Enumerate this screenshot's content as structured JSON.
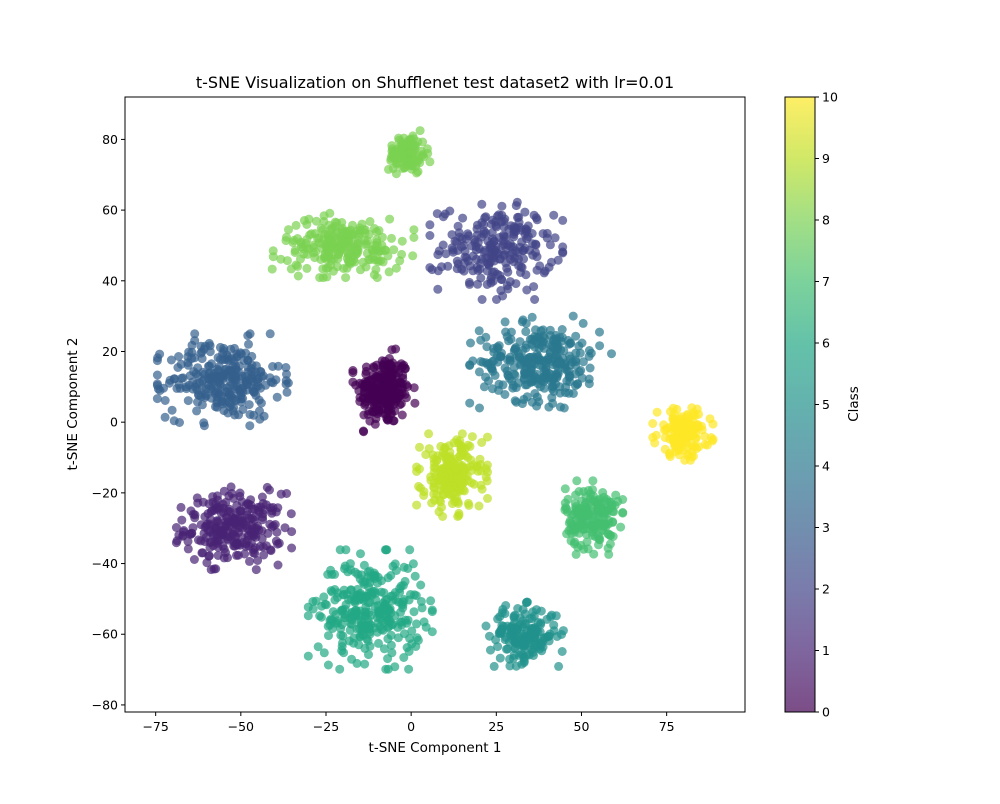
{
  "chart_data": {
    "type": "scatter",
    "title": "t-SNE Visualization on Shufflenet test dataset2 with lr=0.01",
    "xlabel": "t-SNE Component 1",
    "ylabel": "t-SNE Component 2",
    "xlim": [
      -84,
      98
    ],
    "ylim": [
      -82,
      92
    ],
    "xticks": [
      -75,
      -50,
      -25,
      0,
      25,
      50,
      75
    ],
    "yticks": [
      -80,
      -60,
      -40,
      -20,
      0,
      20,
      40,
      60,
      80
    ],
    "grid": false,
    "colorbar": {
      "label": "Class",
      "min": 0,
      "max": 10,
      "ticks": [
        0,
        1,
        2,
        3,
        4,
        5,
        6,
        7,
        8,
        9,
        10
      ],
      "colormap": "viridis"
    },
    "clusters": [
      {
        "class": 0,
        "center": [
          -8,
          9
        ],
        "spread": [
          7,
          9
        ],
        "count": 240
      },
      {
        "class": 1,
        "center": [
          -52,
          -30
        ],
        "spread": [
          13,
          9
        ],
        "count": 260
      },
      {
        "class": 2,
        "center": [
          25,
          49
        ],
        "spread": [
          15,
          11
        ],
        "count": 230
      },
      {
        "class": 3,
        "center": [
          -55,
          12
        ],
        "spread": [
          15,
          10
        ],
        "count": 280
      },
      {
        "class": 4,
        "center": [
          38,
          17
        ],
        "spread": [
          16,
          10
        ],
        "count": 290
      },
      {
        "class": 5,
        "center": [
          33,
          -60
        ],
        "spread": [
          9,
          7
        ],
        "count": 170
      },
      {
        "class": 6,
        "center": [
          -12,
          -53
        ],
        "spread": [
          14,
          13
        ],
        "count": 300
      },
      {
        "class": 7,
        "center": [
          53,
          -27
        ],
        "spread": [
          7,
          8
        ],
        "count": 190
      },
      {
        "class": 8,
        "center": [
          -20,
          50
        ],
        "spread": [
          16,
          7
        ],
        "count": 230
      },
      {
        "class": 8,
        "center": [
          -1,
          76
        ],
        "spread": [
          5,
          5
        ],
        "count": 110
      },
      {
        "class": 9,
        "center": [
          12,
          -15
        ],
        "spread": [
          8,
          9
        ],
        "count": 210
      },
      {
        "class": 10,
        "center": [
          80,
          -3
        ],
        "spread": [
          7,
          6
        ],
        "count": 160
      }
    ]
  }
}
